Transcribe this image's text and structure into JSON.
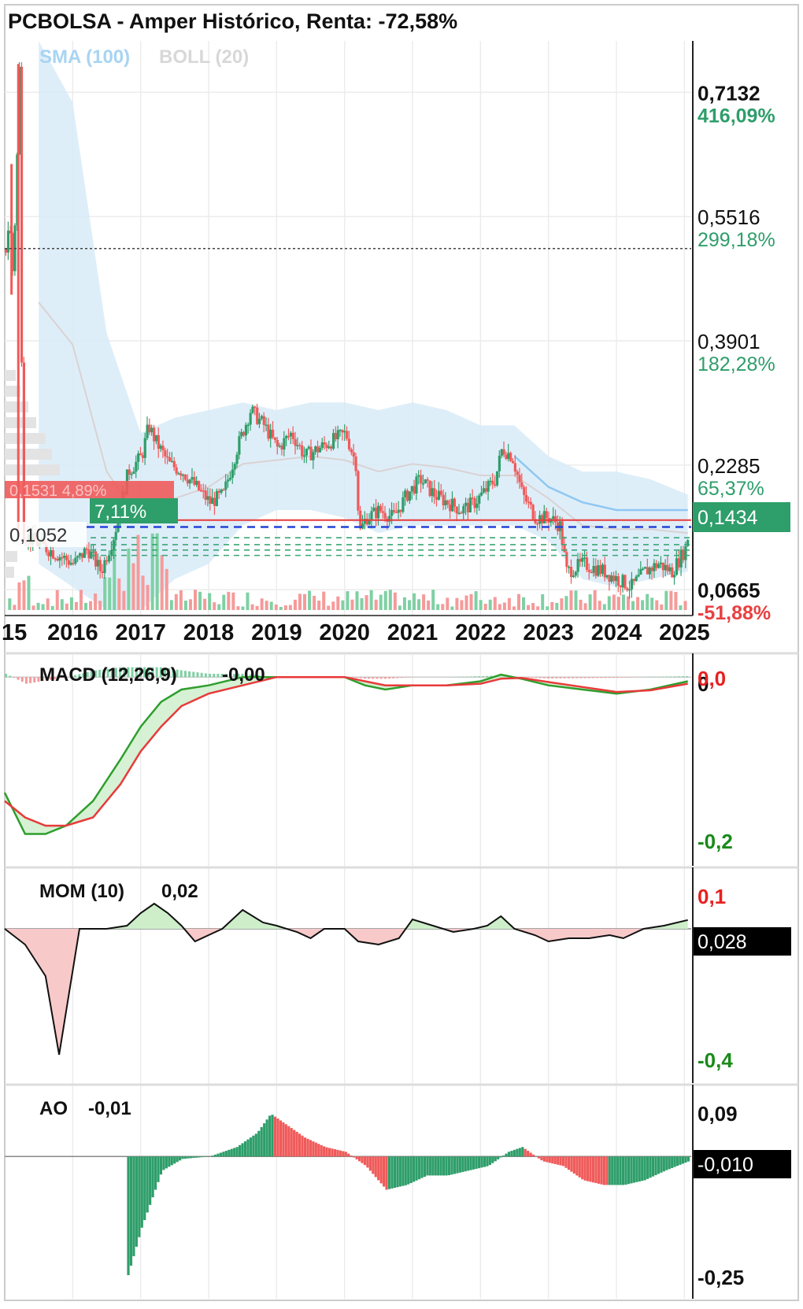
{
  "title": "PCBOLSA - Amper Histórico, Renta: -72,58%",
  "legend": {
    "sma": "SMA (100)",
    "boll": "BOLL (20)"
  },
  "colors": {
    "up": "#2e9e6a",
    "down": "#f05a5a",
    "band": "#d8ebf8",
    "sma": "#8fc8f2",
    "macd_line": "#2e9e2e",
    "signal_line": "#e83a3a",
    "highlight_bg": "#2e9e6a"
  },
  "price_axis": [
    {
      "price": "0,7132",
      "pct": "416,09%",
      "bold": true,
      "pct_color": "up"
    },
    {
      "price": "0,5516",
      "pct": "299,18%",
      "bold": false,
      "pct_color": "up"
    },
    {
      "price": "0,3901",
      "pct": "182,28%",
      "bold": false,
      "pct_color": "up"
    },
    {
      "price": "0,2285",
      "pct": "65,37%",
      "bold": false,
      "pct_color": "up"
    },
    {
      "price": "0,0665",
      "pct": "-51,88%",
      "bold": true,
      "pct_color": "down"
    }
  ],
  "current_price_label": "0,1434",
  "left_labels": {
    "ref_price": "0,1052",
    "pct_tag": "7,11%",
    "hidden_tag": "0,1531  4,89%"
  },
  "x_axis": {
    "first_partial": "15",
    "years": [
      "2016",
      "2017",
      "2018",
      "2019",
      "2020",
      "2021",
      "2022",
      "2023",
      "2024",
      "2025"
    ]
  },
  "macd": {
    "label": "MACD (12,26,9)",
    "value": "-0,00",
    "axis_top_black": "0",
    "axis_top_red": "0,0",
    "axis_bottom": "-0,2"
  },
  "mom": {
    "label": "MOM (10)",
    "value": "0,02",
    "axis_top": "0,1",
    "current": "0,028",
    "axis_bottom": "-0,4"
  },
  "ao": {
    "label": "AO",
    "value": "-0,01",
    "axis_top": "0,09",
    "current": "-0,010",
    "axis_bottom": "-0,25"
  },
  "chart_data": {
    "type": "candlestick",
    "title": "PCBOLSA - Amper Histórico, Renta: -72,58%",
    "x_range": [
      2015.0,
      2025.1
    ],
    "y_range": [
      0.04,
      0.78
    ],
    "price_ticks": [
      0.7132,
      0.5516,
      0.3901,
      0.2285,
      0.0665
    ],
    "reference_lines": {
      "dotted_high": 0.51,
      "current": 0.1434,
      "ref": 0.1052
    },
    "close_path": [
      [
        2015.0,
        0.51
      ],
      [
        2015.05,
        0.55
      ],
      [
        2015.1,
        0.48
      ],
      [
        2015.15,
        0.58
      ],
      [
        2015.2,
        0.75
      ],
      [
        2015.25,
        0.14
      ],
      [
        2015.4,
        0.13
      ],
      [
        2015.6,
        0.12
      ],
      [
        2015.8,
        0.11
      ],
      [
        2016.0,
        0.1
      ],
      [
        2016.2,
        0.12
      ],
      [
        2016.4,
        0.09
      ],
      [
        2016.6,
        0.14
      ],
      [
        2016.8,
        0.22
      ],
      [
        2017.0,
        0.24
      ],
      [
        2017.1,
        0.28
      ],
      [
        2017.2,
        0.26
      ],
      [
        2017.4,
        0.23
      ],
      [
        2017.6,
        0.22
      ],
      [
        2017.8,
        0.2
      ],
      [
        2018.0,
        0.18
      ],
      [
        2018.2,
        0.19
      ],
      [
        2018.4,
        0.25
      ],
      [
        2018.6,
        0.3
      ],
      [
        2018.8,
        0.28
      ],
      [
        2019.0,
        0.25
      ],
      [
        2019.2,
        0.27
      ],
      [
        2019.4,
        0.24
      ],
      [
        2019.6,
        0.25
      ],
      [
        2019.8,
        0.26
      ],
      [
        2020.0,
        0.27
      ],
      [
        2020.15,
        0.23
      ],
      [
        2020.2,
        0.14
      ],
      [
        2020.3,
        0.16
      ],
      [
        2020.5,
        0.17
      ],
      [
        2020.7,
        0.16
      ],
      [
        2020.9,
        0.19
      ],
      [
        2021.1,
        0.21
      ],
      [
        2021.3,
        0.19
      ],
      [
        2021.5,
        0.18
      ],
      [
        2021.7,
        0.17
      ],
      [
        2021.9,
        0.18
      ],
      [
        2022.0,
        0.19
      ],
      [
        2022.2,
        0.21
      ],
      [
        2022.3,
        0.25
      ],
      [
        2022.45,
        0.24
      ],
      [
        2022.6,
        0.19
      ],
      [
        2022.8,
        0.16
      ],
      [
        2023.0,
        0.16
      ],
      [
        2023.15,
        0.15
      ],
      [
        2023.25,
        0.09
      ],
      [
        2023.5,
        0.1
      ],
      [
        2023.8,
        0.09
      ],
      [
        2024.0,
        0.08
      ],
      [
        2024.2,
        0.07
      ],
      [
        2024.4,
        0.09
      ],
      [
        2024.6,
        0.1
      ],
      [
        2024.8,
        0.09
      ],
      [
        2025.0,
        0.12
      ],
      [
        2025.05,
        0.1434
      ]
    ],
    "sma100": [
      [
        2022.5,
        0.24
      ],
      [
        2023.0,
        0.2
      ],
      [
        2023.5,
        0.18
      ],
      [
        2024.0,
        0.17
      ],
      [
        2024.5,
        0.17
      ],
      [
        2025.05,
        0.17
      ]
    ],
    "boll_upper": [
      [
        2015.5,
        0.78
      ],
      [
        2016.0,
        0.7
      ],
      [
        2016.5,
        0.4
      ],
      [
        2017.0,
        0.27
      ],
      [
        2017.5,
        0.29
      ],
      [
        2018.0,
        0.3
      ],
      [
        2018.5,
        0.31
      ],
      [
        2019.0,
        0.3
      ],
      [
        2019.5,
        0.31
      ],
      [
        2020.0,
        0.31
      ],
      [
        2020.5,
        0.3
      ],
      [
        2021.0,
        0.31
      ],
      [
        2021.5,
        0.3
      ],
      [
        2022.0,
        0.28
      ],
      [
        2022.5,
        0.28
      ],
      [
        2023.0,
        0.24
      ],
      [
        2023.5,
        0.22
      ],
      [
        2024.0,
        0.22
      ],
      [
        2024.5,
        0.21
      ],
      [
        2025.05,
        0.19
      ]
    ],
    "boll_lower": [
      [
        2015.5,
        0.1
      ],
      [
        2016.0,
        0.07
      ],
      [
        2016.5,
        0.04
      ],
      [
        2017.0,
        0.04
      ],
      [
        2017.5,
        0.08
      ],
      [
        2018.0,
        0.1
      ],
      [
        2018.5,
        0.15
      ],
      [
        2019.0,
        0.17
      ],
      [
        2019.5,
        0.17
      ],
      [
        2020.0,
        0.16
      ],
      [
        2020.5,
        0.14
      ],
      [
        2021.0,
        0.15
      ],
      [
        2021.5,
        0.15
      ],
      [
        2022.0,
        0.15
      ],
      [
        2022.5,
        0.15
      ],
      [
        2023.0,
        0.13
      ],
      [
        2023.5,
        0.08
      ],
      [
        2024.0,
        0.07
      ],
      [
        2024.5,
        0.08
      ],
      [
        2025.05,
        0.09
      ]
    ],
    "macd_line": [
      [
        2015.0,
        -0.14
      ],
      [
        2015.3,
        -0.19
      ],
      [
        2015.6,
        -0.19
      ],
      [
        2015.9,
        -0.18
      ],
      [
        2016.3,
        -0.15
      ],
      [
        2016.7,
        -0.1
      ],
      [
        2017.0,
        -0.06
      ],
      [
        2017.3,
        -0.03
      ],
      [
        2017.6,
        -0.015
      ],
      [
        2018.0,
        -0.01
      ],
      [
        2018.5,
        0.0
      ],
      [
        2019.0,
        0.0
      ],
      [
        2019.5,
        0.0
      ],
      [
        2020.0,
        0.0
      ],
      [
        2020.3,
        -0.01
      ],
      [
        2020.6,
        -0.015
      ],
      [
        2021.0,
        -0.01
      ],
      [
        2021.5,
        -0.01
      ],
      [
        2022.0,
        -0.005
      ],
      [
        2022.3,
        0.003
      ],
      [
        2022.6,
        -0.002
      ],
      [
        2023.0,
        -0.01
      ],
      [
        2023.5,
        -0.015
      ],
      [
        2024.0,
        -0.02
      ],
      [
        2024.5,
        -0.015
      ],
      [
        2025.05,
        -0.005
      ]
    ],
    "signal_line": [
      [
        2015.0,
        -0.15
      ],
      [
        2015.3,
        -0.17
      ],
      [
        2015.6,
        -0.18
      ],
      [
        2015.9,
        -0.18
      ],
      [
        2016.3,
        -0.17
      ],
      [
        2016.7,
        -0.13
      ],
      [
        2017.0,
        -0.09
      ],
      [
        2017.3,
        -0.06
      ],
      [
        2017.6,
        -0.035
      ],
      [
        2018.0,
        -0.02
      ],
      [
        2018.5,
        -0.01
      ],
      [
        2019.0,
        0.0
      ],
      [
        2019.5,
        0.0
      ],
      [
        2020.0,
        0.0
      ],
      [
        2020.3,
        -0.005
      ],
      [
        2020.6,
        -0.01
      ],
      [
        2021.0,
        -0.01
      ],
      [
        2021.5,
        -0.01
      ],
      [
        2022.0,
        -0.008
      ],
      [
        2022.3,
        -0.002
      ],
      [
        2022.6,
        -0.001
      ],
      [
        2023.0,
        -0.006
      ],
      [
        2023.5,
        -0.012
      ],
      [
        2024.0,
        -0.018
      ],
      [
        2024.5,
        -0.016
      ],
      [
        2025.05,
        -0.008
      ]
    ],
    "mom_path": [
      [
        2015.0,
        0.0
      ],
      [
        2015.3,
        -0.05
      ],
      [
        2015.6,
        -0.15
      ],
      [
        2015.8,
        -0.4
      ],
      [
        2015.95,
        -0.2
      ],
      [
        2016.1,
        0.0
      ],
      [
        2016.5,
        0.0
      ],
      [
        2016.8,
        0.01
      ],
      [
        2017.0,
        0.05
      ],
      [
        2017.2,
        0.08
      ],
      [
        2017.4,
        0.05
      ],
      [
        2017.6,
        0.01
      ],
      [
        2017.8,
        -0.04
      ],
      [
        2018.0,
        -0.02
      ],
      [
        2018.2,
        0.0
      ],
      [
        2018.5,
        0.06
      ],
      [
        2018.8,
        0.02
      ],
      [
        2019.0,
        0.01
      ],
      [
        2019.3,
        -0.01
      ],
      [
        2019.5,
        -0.03
      ],
      [
        2019.7,
        0.0
      ],
      [
        2020.0,
        0.0
      ],
      [
        2020.2,
        -0.04
      ],
      [
        2020.5,
        -0.05
      ],
      [
        2020.8,
        -0.03
      ],
      [
        2021.0,
        0.03
      ],
      [
        2021.3,
        0.01
      ],
      [
        2021.6,
        -0.01
      ],
      [
        2021.9,
        0.0
      ],
      [
        2022.1,
        0.01
      ],
      [
        2022.3,
        0.04
      ],
      [
        2022.5,
        0.0
      ],
      [
        2022.8,
        -0.02
      ],
      [
        2023.0,
        -0.04
      ],
      [
        2023.3,
        -0.03
      ],
      [
        2023.6,
        -0.03
      ],
      [
        2023.9,
        -0.02
      ],
      [
        2024.1,
        -0.03
      ],
      [
        2024.4,
        0.0
      ],
      [
        2024.7,
        0.01
      ],
      [
        2025.05,
        0.028
      ]
    ],
    "ao_bars": [
      [
        2016.8,
        -0.25
      ],
      [
        2017.0,
        -0.15
      ],
      [
        2017.3,
        -0.03
      ],
      [
        2017.6,
        -0.005
      ],
      [
        2018.0,
        0.0
      ],
      [
        2018.4,
        0.02
      ],
      [
        2018.7,
        0.05
      ],
      [
        2018.9,
        0.09
      ],
      [
        2019.1,
        0.07
      ],
      [
        2019.4,
        0.04
      ],
      [
        2019.7,
        0.02
      ],
      [
        2020.0,
        0.01
      ],
      [
        2020.3,
        -0.02
      ],
      [
        2020.6,
        -0.07
      ],
      [
        2020.9,
        -0.06
      ],
      [
        2021.2,
        -0.04
      ],
      [
        2021.5,
        -0.04
      ],
      [
        2021.8,
        -0.03
      ],
      [
        2022.1,
        -0.02
      ],
      [
        2022.4,
        0.01
      ],
      [
        2022.6,
        0.02
      ],
      [
        2022.9,
        -0.01
      ],
      [
        2023.2,
        -0.02
      ],
      [
        2023.5,
        -0.05
      ],
      [
        2023.8,
        -0.06
      ],
      [
        2024.1,
        -0.06
      ],
      [
        2024.4,
        -0.05
      ],
      [
        2024.7,
        -0.03
      ],
      [
        2025.05,
        -0.01
      ]
    ]
  }
}
